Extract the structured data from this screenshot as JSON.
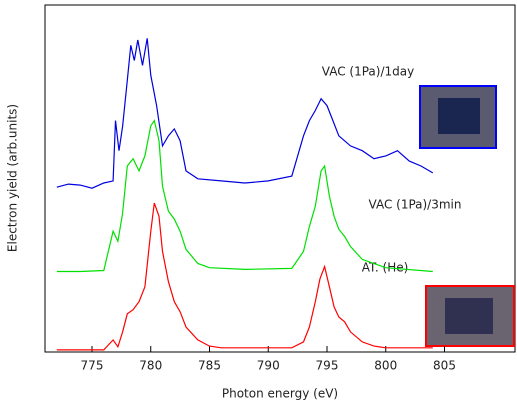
{
  "chart_data": {
    "type": "line",
    "xlabel": "Photon energy (eV)",
    "ylabel": "Electron  yield (arb.units)",
    "xlim": [
      771,
      811
    ],
    "xticks": [
      775,
      780,
      785,
      790,
      795,
      800,
      805
    ],
    "ylim": [
      0,
      100
    ],
    "series": [
      {
        "name": "AT. (He)",
        "color": "#ff0000",
        "x": [
          772,
          774,
          776,
          776.8,
          777.2,
          777.6,
          778,
          778.5,
          779,
          779.5,
          780,
          780.3,
          780.7,
          781,
          781.5,
          782,
          782.5,
          783,
          784,
          785,
          786,
          790,
          792,
          793,
          793.5,
          794,
          794.4,
          794.8,
          795.2,
          795.6,
          796,
          796.5,
          797,
          798,
          799,
          800,
          804
        ],
        "values": [
          0.6,
          0.6,
          0.6,
          3.5,
          1.5,
          5.8,
          11,
          12.2,
          14.5,
          18.8,
          34.8,
          42.9,
          39.1,
          29,
          20.3,
          14.5,
          11.6,
          7.2,
          3.5,
          1.7,
          1.2,
          1.2,
          1.2,
          2.9,
          7.2,
          14.5,
          21,
          24.6,
          18.8,
          13,
          10.1,
          8.7,
          5.8,
          2.9,
          1.7,
          1.2,
          1.2
        ]
      },
      {
        "name": "VAC (1Pa)/3min",
        "color": "#00e000",
        "x": [
          772,
          774,
          776,
          776.8,
          777.2,
          777.6,
          778,
          778.5,
          779,
          779.5,
          780,
          780.3,
          780.7,
          781,
          781.5,
          782,
          782.5,
          783,
          784,
          785,
          788,
          792,
          793,
          793.5,
          794,
          794.5,
          794.8,
          795.2,
          795.6,
          796,
          796.5,
          797,
          798,
          800,
          804
        ],
        "values": [
          23.2,
          23.2,
          23.5,
          34.8,
          31.9,
          40,
          53.6,
          55.7,
          52.2,
          56.5,
          65.2,
          66.7,
          60.9,
          47.8,
          40.6,
          38.3,
          34.8,
          29.6,
          25.5,
          24.3,
          23.8,
          24.1,
          29,
          36.2,
          42,
          52.2,
          53.6,
          44.9,
          39.1,
          35.4,
          33.3,
          30.4,
          26.7,
          24.3,
          23.2
        ]
      },
      {
        "name": "VAC (1Pa)/1day",
        "color": "#0000e0",
        "x": [
          772,
          773,
          774,
          775,
          776,
          776.8,
          777,
          777.3,
          777.6,
          778,
          778.3,
          778.6,
          778.9,
          779.3,
          779.7,
          780,
          780.5,
          781,
          781.5,
          782,
          782.5,
          783,
          784,
          786,
          788,
          790,
          792,
          793,
          793.5,
          794,
          794.5,
          795,
          795.5,
          796,
          797,
          798,
          799,
          800,
          801,
          802,
          803,
          804
        ],
        "values": [
          47.5,
          48.4,
          48.1,
          47.2,
          48.7,
          49.3,
          66.7,
          58,
          65,
          78.3,
          88.4,
          84,
          89.9,
          82.6,
          90.4,
          79.7,
          71,
          59.4,
          62.3,
          64.3,
          60.9,
          52.2,
          49.9,
          49.3,
          48.7,
          49.3,
          50.7,
          62.3,
          66.7,
          69.6,
          73,
          71,
          66.7,
          62.3,
          59.4,
          58,
          55.7,
          56.5,
          58,
          55,
          53.6,
          51.6
        ]
      }
    ]
  }
}
